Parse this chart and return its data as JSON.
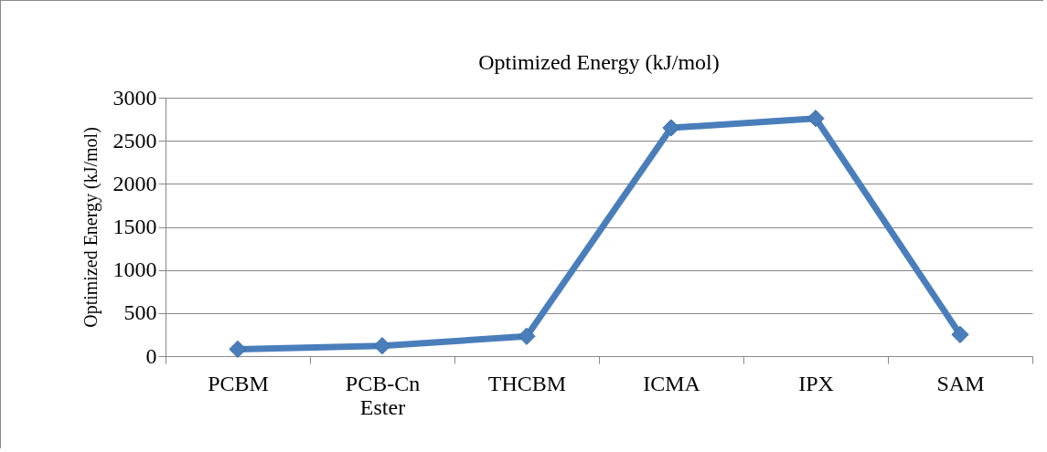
{
  "chart_data": {
    "type": "line",
    "title": "Optimized Energy (kJ/mol)",
    "ylabel": "Optimized Energy (kJ/mol)",
    "categories": [
      "PCBM",
      "PCB-Cn Ester",
      "THCBM",
      "ICMA",
      "IPX",
      "SAM"
    ],
    "series": [
      {
        "color": "#4a7ebb",
        "values": [
          80,
          120,
          230,
          2650,
          2760,
          250
        ]
      }
    ],
    "ylim": [
      0,
      3000
    ],
    "yticks": [
      0,
      500,
      1000,
      1500,
      2000,
      2500,
      3000
    ],
    "grid": "y",
    "marker": "diamond",
    "line_style": "solid"
  }
}
